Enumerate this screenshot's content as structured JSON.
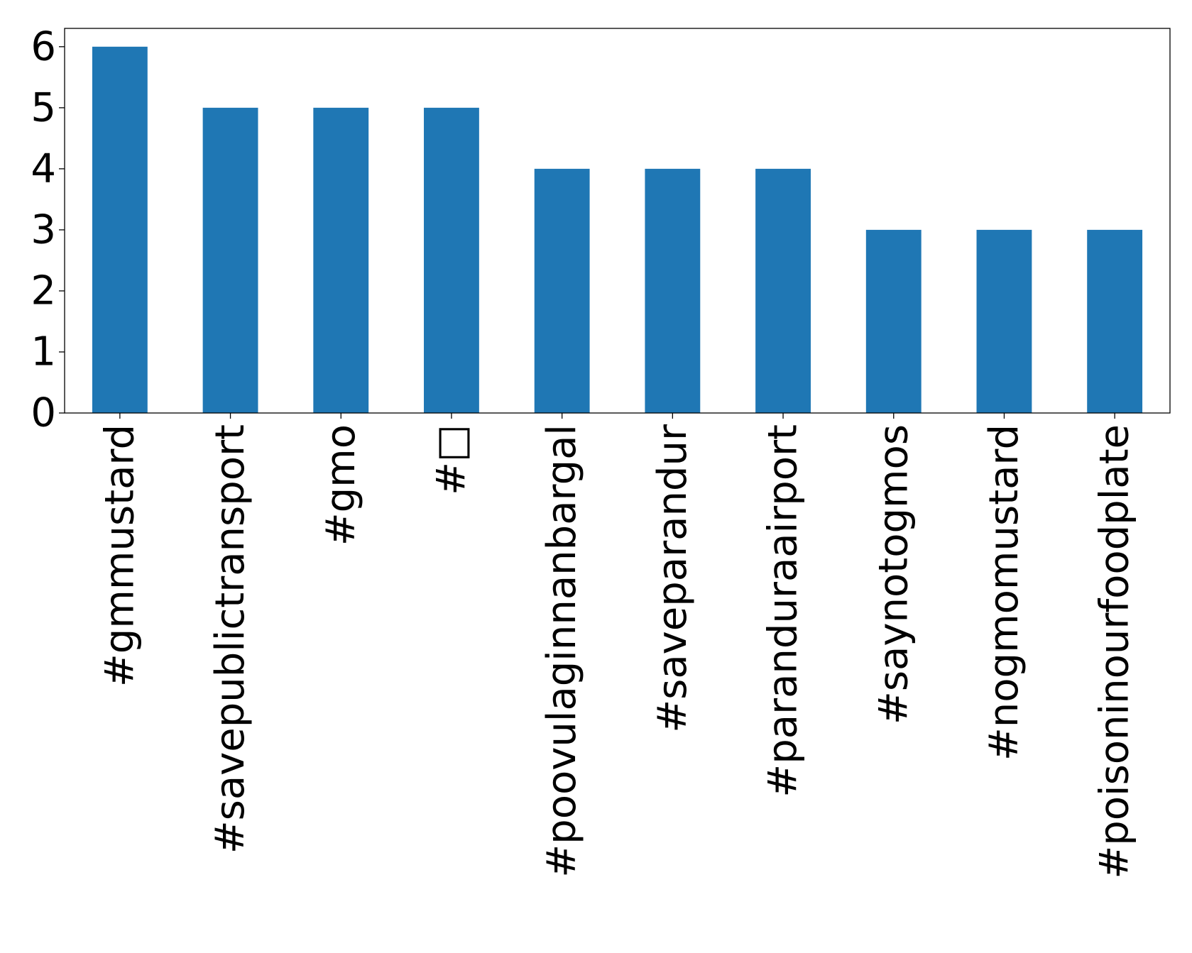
{
  "chart_data": {
    "type": "bar",
    "title": "",
    "xlabel": "",
    "ylabel": "",
    "categories": [
      "#gmmustard",
      "#savepublictransport",
      "#gmo",
      "#□",
      "#poovulaginnanbargal",
      "#saveparandur",
      "#paranduraairport",
      "#saynotogmos",
      "#nogmomustard",
      "#poisoninourfoodplate"
    ],
    "values": [
      6,
      5,
      5,
      5,
      4,
      4,
      4,
      3,
      3,
      3
    ],
    "ylim": [
      0,
      6.3
    ],
    "yticks": [
      0,
      1,
      2,
      3,
      4,
      5,
      6
    ],
    "bar_color": "#1f77b4",
    "grid": false,
    "legend": "none"
  }
}
